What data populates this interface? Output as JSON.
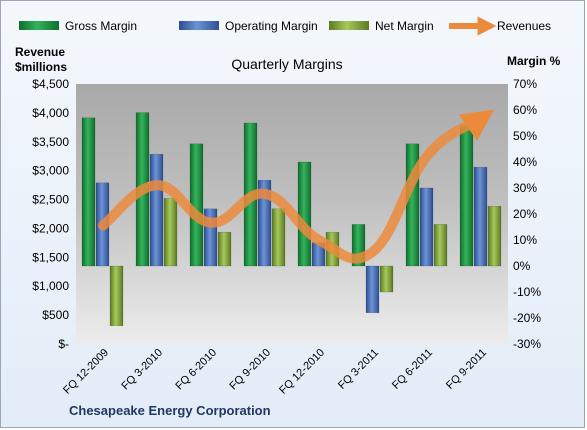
{
  "chart_data": {
    "type": "bar",
    "title": "Quarterly Margins",
    "footer": "Chesapeake Energy Corporation",
    "left_axis": {
      "label_line1": "Revenue",
      "label_line2": "$millions",
      "range": [
        0,
        4500
      ],
      "ticks": [
        "$-",
        "$500",
        "$1,000",
        "$1,500",
        "$2,000",
        "$2,500",
        "$3,000",
        "$3,500",
        "$4,000",
        "$4,500"
      ]
    },
    "right_axis": {
      "label": "Margin %",
      "range": [
        -30,
        70
      ],
      "ticks": [
        "-30%",
        "-20%",
        "-10%",
        "0%",
        "10%",
        "20%",
        "30%",
        "40%",
        "50%",
        "60%",
        "70%"
      ]
    },
    "categories": [
      "FQ 12-2009",
      "FQ 3-2010",
      "FQ 6-2010",
      "FQ 9-2010",
      "FQ 12-2010",
      "FQ 3-2011",
      "FQ 6-2011",
      "FQ 9-2011"
    ],
    "series": [
      {
        "name": "Gross Margin",
        "axis": "right",
        "kind": "bar",
        "color": "#1f9a45",
        "values": [
          57,
          59,
          47,
          55,
          40,
          16,
          47,
          54
        ]
      },
      {
        "name": "Operating Margin",
        "axis": "right",
        "kind": "bar",
        "color": "#4f78c0",
        "values": [
          32,
          43,
          22,
          33,
          9,
          -18,
          30,
          38
        ]
      },
      {
        "name": "Net Margin",
        "axis": "right",
        "kind": "bar",
        "color": "#86ac3f",
        "values": [
          -23,
          26,
          13,
          22,
          13,
          -10,
          16,
          23
        ]
      },
      {
        "name": "Revenues",
        "axis": "left",
        "kind": "line",
        "color": "#ec8a3c",
        "values": [
          2050,
          2750,
          2100,
          2600,
          1800,
          1600,
          3250,
          3900
        ]
      }
    ],
    "legend": "top",
    "grid": false
  }
}
